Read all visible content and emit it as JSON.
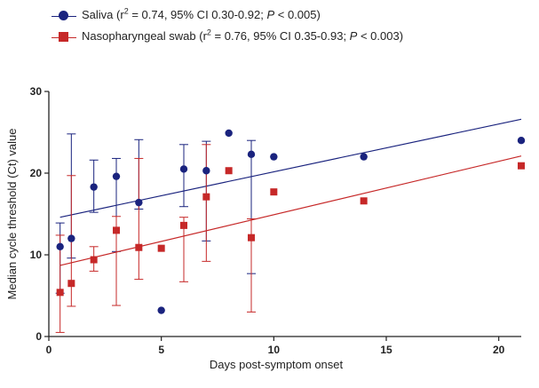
{
  "legend": [
    {
      "label_pre": "Saliva (r",
      "sup": "2",
      "label_mid": " = 0.74, 95% CI  0.30-0.92; ",
      "p": "P",
      "label_post": " < 0.005)",
      "color": "#1a237e",
      "marker": "circle"
    },
    {
      "label_pre": "Nasopharyngeal swab (r",
      "sup": "2",
      "label_mid": " = 0.76, 95% CI 0.35-0.93; ",
      "p": "P",
      "label_post": " < 0.003)",
      "color": "#c62828",
      "marker": "square"
    }
  ],
  "chart_data": {
    "type": "scatter",
    "xlabel": "Days post-symptom onset",
    "ylabel": "Median cycle threshold (Ct) value",
    "xlim": [
      0,
      21
    ],
    "ylim": [
      0,
      30
    ],
    "xticks": [
      "0",
      "5",
      "10",
      "15",
      "20"
    ],
    "xtick_values": [
      0,
      5,
      10,
      15,
      20
    ],
    "yticks": [
      "0",
      "10",
      "20",
      "30"
    ],
    "ytick_values": [
      0,
      10,
      20,
      30
    ],
    "series": [
      {
        "name": "Saliva",
        "color": "#1a237e",
        "marker": "circle",
        "points": [
          {
            "x": 0.5,
            "y": 11.0,
            "lo": 5.3,
            "hi": 13.9
          },
          {
            "x": 1,
            "y": 12.0,
            "lo": 9.6,
            "hi": 24.8
          },
          {
            "x": 2,
            "y": 18.3,
            "lo": 15.2,
            "hi": 21.6
          },
          {
            "x": 3,
            "y": 19.6,
            "lo": 10.4,
            "hi": 21.8
          },
          {
            "x": 4,
            "y": 16.4,
            "lo": 15.6,
            "hi": 24.1
          },
          {
            "x": 5,
            "y": 3.2
          },
          {
            "x": 6,
            "y": 20.5,
            "lo": 15.9,
            "hi": 23.5
          },
          {
            "x": 7,
            "y": 20.3,
            "lo": 11.7,
            "hi": 23.9
          },
          {
            "x": 8,
            "y": 24.9
          },
          {
            "x": 9,
            "y": 22.3,
            "lo": 7.7,
            "hi": 24.0
          },
          {
            "x": 10,
            "y": 22.0
          },
          {
            "x": 14,
            "y": 22.0
          },
          {
            "x": 21,
            "y": 24.0
          }
        ],
        "trend": {
          "x0": 0.5,
          "y0": 14.6,
          "x1": 21,
          "y1": 26.6
        }
      },
      {
        "name": "Nasopharyngeal swab",
        "color": "#c62828",
        "marker": "square",
        "points": [
          {
            "x": 0.5,
            "y": 5.4,
            "lo": 0.5,
            "hi": 12.4
          },
          {
            "x": 1,
            "y": 6.5,
            "lo": 3.7,
            "hi": 19.7
          },
          {
            "x": 2,
            "y": 9.4,
            "lo": 8.0,
            "hi": 11.0
          },
          {
            "x": 3,
            "y": 13.0,
            "lo": 3.8,
            "hi": 14.7
          },
          {
            "x": 4,
            "y": 10.9,
            "lo": 7.0,
            "hi": 21.8
          },
          {
            "x": 5,
            "y": 10.8
          },
          {
            "x": 6,
            "y": 13.6,
            "lo": 6.7,
            "hi": 14.6
          },
          {
            "x": 7,
            "y": 17.1,
            "lo": 9.2,
            "hi": 23.5
          },
          {
            "x": 8,
            "y": 20.3
          },
          {
            "x": 9,
            "y": 12.1,
            "lo": 3.0,
            "hi": 14.4
          },
          {
            "x": 10,
            "y": 17.7
          },
          {
            "x": 14,
            "y": 16.6
          },
          {
            "x": 21,
            "y": 20.9
          }
        ],
        "trend": {
          "x0": 0.5,
          "y0": 8.7,
          "x1": 21,
          "y1": 22.1
        }
      }
    ]
  }
}
